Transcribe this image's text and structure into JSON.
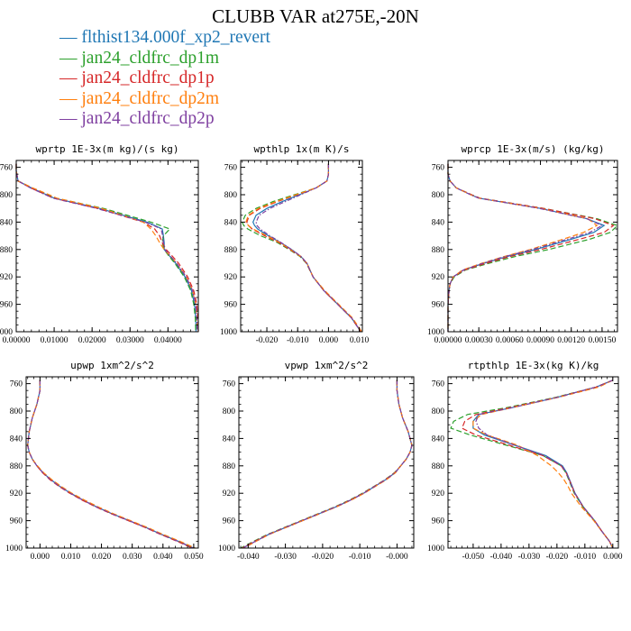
{
  "title": "CLUBB VAR at275E,-20N",
  "legend": [
    {
      "label": "flthist134.000f_xp2_revert",
      "color": "#1f77b4"
    },
    {
      "label": "jan24_cldfrc_dp1m",
      "color": "#2ca02c"
    },
    {
      "label": "jan24_cldfrc_dp1p",
      "color": "#d62728"
    },
    {
      "label": "jan24_cldfrc_dp2m",
      "color": "#ff7f0e"
    },
    {
      "label": "jan24_cldfrc_dp2p",
      "color": "#7f3fa0"
    }
  ],
  "chart_data": [
    {
      "type": "line",
      "title": "wprtp  1E-3x(m kg)/(s kg)",
      "xlim": [
        0.0,
        0.048
      ],
      "xticks": [
        0,
        0.01,
        0.02,
        0.03,
        0.04
      ],
      "xtick_labels": [
        "0.00000",
        "0.01000",
        "0.02000",
        "0.03000",
        "0.04000"
      ],
      "ylim": [
        1000,
        750
      ],
      "yticks": [
        760,
        800,
        840,
        880,
        920,
        960,
        1000
      ],
      "y": [
        755,
        765,
        780,
        790,
        800,
        805,
        820,
        840,
        845,
        850,
        860,
        870,
        880,
        890,
        900,
        920,
        940,
        960,
        980,
        995,
        1000
      ],
      "series": [
        {
          "values": [
            0.0,
            0.0,
            0.0005,
            0.004,
            0.008,
            0.01,
            0.022,
            0.0345,
            0.0365,
            0.0385,
            0.0388,
            0.039,
            0.039,
            0.0405,
            0.042,
            0.0445,
            0.0462,
            0.047,
            0.0473,
            0.0474,
            0.0474
          ]
        },
        {
          "values": [
            0.0,
            0.0,
            0.0005,
            0.0042,
            0.0085,
            0.0105,
            0.023,
            0.0355,
            0.038,
            0.0405,
            0.0388,
            0.0385,
            0.039,
            0.0403,
            0.0418,
            0.0443,
            0.046,
            0.0468,
            0.0472,
            0.0473,
            0.0473
          ]
        },
        {
          "values": [
            0.0,
            0.0,
            0.0005,
            0.0038,
            0.0078,
            0.0098,
            0.0215,
            0.0335,
            0.035,
            0.0365,
            0.0378,
            0.0385,
            0.0395,
            0.0412,
            0.0428,
            0.0452,
            0.0468,
            0.0476,
            0.0479,
            0.048,
            0.048
          ]
        },
        {
          "values": [
            0.0,
            0.0,
            0.0005,
            0.0043,
            0.0087,
            0.0107,
            0.0225,
            0.0335,
            0.0345,
            0.0355,
            0.0368,
            0.0378,
            0.039,
            0.0407,
            0.0423,
            0.0448,
            0.0465,
            0.0473,
            0.0476,
            0.0477,
            0.0477
          ]
        },
        {
          "values": [
            0.0,
            0.0,
            0.0005,
            0.0037,
            0.0077,
            0.0097,
            0.0212,
            0.034,
            0.0362,
            0.0382,
            0.0386,
            0.0388,
            0.0392,
            0.0407,
            0.0423,
            0.0448,
            0.0465,
            0.0473,
            0.0476,
            0.0477,
            0.0477
          ]
        }
      ]
    },
    {
      "type": "line",
      "title": "wpthlp  1x(m K)/s",
      "xlim": [
        -0.0285,
        0.011
      ],
      "xticks": [
        -0.02,
        -0.01,
        0.0,
        0.01
      ],
      "xtick_labels": [
        "-0.020",
        "-0.010",
        "0.000",
        "0.010"
      ],
      "ylim": [
        1000,
        750
      ],
      "yticks": [
        760,
        800,
        840,
        880,
        920,
        960,
        1000
      ],
      "y": [
        755,
        770,
        780,
        790,
        800,
        810,
        820,
        830,
        840,
        845,
        850,
        860,
        870,
        880,
        890,
        900,
        920,
        940,
        960,
        980,
        1000
      ],
      "series": [
        {
          "values": [
            0.0,
            0.0,
            -0.0005,
            -0.004,
            -0.0095,
            -0.015,
            -0.02,
            -0.0235,
            -0.0245,
            -0.024,
            -0.023,
            -0.0195,
            -0.0155,
            -0.012,
            -0.009,
            -0.007,
            -0.005,
            -0.0015,
            0.003,
            0.0075,
            0.0105
          ]
        },
        {
          "values": [
            0.0,
            0.0,
            -0.0005,
            -0.004,
            -0.011,
            -0.018,
            -0.0235,
            -0.027,
            -0.028,
            -0.0275,
            -0.0262,
            -0.022,
            -0.0165,
            -0.0128,
            -0.0093,
            -0.0072,
            -0.005,
            -0.0015,
            0.003,
            0.0075,
            0.0105
          ]
        },
        {
          "values": [
            0.0,
            0.0,
            -0.0005,
            -0.004,
            -0.0103,
            -0.0165,
            -0.0222,
            -0.0257,
            -0.0265,
            -0.026,
            -0.0248,
            -0.0207,
            -0.016,
            -0.0125,
            -0.0091,
            -0.0071,
            -0.005,
            -0.0015,
            0.003,
            0.0075,
            0.0105
          ]
        },
        {
          "values": [
            0.0,
            0.0,
            -0.0005,
            -0.004,
            -0.0105,
            -0.017,
            -0.0227,
            -0.026,
            -0.0268,
            -0.026,
            -0.0245,
            -0.02,
            -0.0157,
            -0.0123,
            -0.009,
            -0.007,
            -0.005,
            -0.0012,
            0.0033,
            0.0078,
            0.0108
          ]
        },
        {
          "values": [
            0.0,
            0.0,
            -0.0005,
            -0.004,
            -0.009,
            -0.014,
            -0.019,
            -0.0225,
            -0.0235,
            -0.0232,
            -0.0222,
            -0.019,
            -0.0153,
            -0.012,
            -0.0089,
            -0.007,
            -0.005,
            -0.0015,
            0.003,
            0.0075,
            0.0105
          ]
        }
      ]
    },
    {
      "type": "line",
      "title": "wprcp  1E-3x(m/s) (kg/kg)",
      "xlim": [
        0.0,
        0.00165
      ],
      "xticks": [
        0,
        0.0003,
        0.0006,
        0.0009,
        0.0012,
        0.0015
      ],
      "xtick_labels": [
        "0.00000",
        "0.00030",
        "0.00060",
        "0.00090",
        "0.00120",
        "0.00150"
      ],
      "ylim": [
        1000,
        750
      ],
      "yticks": [
        760,
        800,
        840,
        880,
        920,
        960,
        1000
      ],
      "y": [
        755,
        770,
        780,
        790,
        800,
        805,
        820,
        835,
        845,
        855,
        865,
        880,
        890,
        900,
        910,
        920,
        930,
        940,
        960,
        980,
        1000
      ],
      "series": [
        {
          "values": [
            0.0,
            0.0,
            2e-05,
            8e-05,
            0.00022,
            0.0003,
            0.0009,
            0.00135,
            0.00152,
            0.00142,
            0.0012,
            0.00085,
            0.00058,
            0.00035,
            0.00015,
            5e-05,
            2e-05,
            1e-05,
            0.0,
            0.0,
            0.0
          ]
        },
        {
          "values": [
            0.0,
            0.0,
            2e-05,
            8e-05,
            0.00023,
            0.00031,
            0.00093,
            0.00145,
            0.00165,
            0.00158,
            0.00138,
            0.00098,
            0.00066,
            0.0004,
            0.00017,
            6e-05,
            2e-05,
            1e-05,
            0.0,
            0.0,
            0.0
          ]
        },
        {
          "values": [
            0.0,
            0.0,
            2e-05,
            8e-05,
            0.00023,
            0.00031,
            0.00093,
            0.00143,
            0.00161,
            0.00152,
            0.00128,
            0.0009,
            0.00061,
            0.00037,
            0.00016,
            5e-05,
            2e-05,
            1e-05,
            0.0,
            0.0,
            0.0
          ]
        },
        {
          "values": [
            0.0,
            0.0,
            2e-05,
            8e-05,
            0.00022,
            0.0003,
            0.0009,
            0.00136,
            0.00145,
            0.00132,
            0.00112,
            0.0008,
            0.00055,
            0.00033,
            0.00014,
            5e-05,
            2e-05,
            1e-05,
            0.0,
            0.0,
            0.0
          ]
        },
        {
          "values": [
            0.0,
            0.0,
            2e-05,
            8e-05,
            0.00022,
            0.0003,
            0.00089,
            0.00135,
            0.0015,
            0.00138,
            0.00116,
            0.00082,
            0.00056,
            0.00034,
            0.00015,
            5e-05,
            2e-05,
            1e-05,
            0.0,
            0.0,
            0.0
          ]
        }
      ]
    },
    {
      "type": "line",
      "title": "upwp  1xm^2/s^2",
      "xlim": [
        -0.0045,
        0.0515
      ],
      "xticks": [
        0.0,
        0.01,
        0.02,
        0.03,
        0.04,
        0.05
      ],
      "xtick_labels": [
        "0.000",
        "0.010",
        "0.020",
        "0.030",
        "0.040",
        "0.050"
      ],
      "ylim": [
        1000,
        750
      ],
      "yticks": [
        760,
        800,
        840,
        880,
        920,
        960,
        1000
      ],
      "y": [
        755,
        770,
        790,
        810,
        830,
        850,
        860,
        870,
        880,
        890,
        900,
        910,
        920,
        930,
        940,
        950,
        960,
        970,
        980,
        990,
        1000
      ],
      "series": [
        {
          "values": [
            0.0,
            0.0,
            -0.001,
            -0.0025,
            -0.0035,
            -0.004,
            -0.0035,
            -0.0025,
            -0.001,
            0.001,
            0.0035,
            0.0065,
            0.01,
            0.014,
            0.0185,
            0.0235,
            0.029,
            0.0345,
            0.0395,
            0.045,
            0.05
          ]
        },
        {
          "values": [
            0.0,
            0.0,
            -0.001,
            -0.0025,
            -0.0035,
            -0.004,
            -0.0035,
            -0.0025,
            -0.001,
            0.001,
            0.0035,
            0.0065,
            0.01,
            0.014,
            0.0185,
            0.0235,
            0.029,
            0.0345,
            0.0395,
            0.0448,
            0.0498
          ]
        },
        {
          "values": [
            0.0,
            0.0,
            -0.001,
            -0.0025,
            -0.0035,
            -0.004,
            -0.0035,
            -0.0025,
            -0.001,
            0.0008,
            0.0032,
            0.0062,
            0.0097,
            0.0137,
            0.0182,
            0.0232,
            0.0287,
            0.0342,
            0.0392,
            0.0445,
            0.0495
          ]
        },
        {
          "values": [
            0.0,
            0.0,
            -0.001,
            -0.0025,
            -0.0035,
            -0.004,
            -0.0035,
            -0.0025,
            -0.0008,
            0.0012,
            0.0038,
            0.0069,
            0.0104,
            0.0145,
            0.019,
            0.024,
            0.0295,
            0.035,
            0.04,
            0.0455,
            0.0505
          ]
        },
        {
          "values": [
            0.0,
            0.0,
            -0.001,
            -0.0025,
            -0.0035,
            -0.004,
            -0.0035,
            -0.0025,
            -0.001,
            0.0009,
            0.0034,
            0.0064,
            0.0099,
            0.0139,
            0.0184,
            0.0234,
            0.0289,
            0.0344,
            0.0394,
            0.0448,
            0.0498
          ]
        }
      ]
    },
    {
      "type": "line",
      "title": "vpwp  1xm^2/s^2",
      "xlim": [
        -0.0425,
        0.0045
      ],
      "xticks": [
        -0.04,
        -0.03,
        -0.02,
        -0.01,
        0.0
      ],
      "xtick_labels": [
        "-0.040",
        "-0.030",
        "-0.020",
        "-0.010",
        "-0.000"
      ],
      "ylim": [
        1000,
        750
      ],
      "yticks": [
        760,
        800,
        840,
        880,
        920,
        960,
        1000
      ],
      "y": [
        755,
        770,
        790,
        810,
        830,
        850,
        860,
        870,
        880,
        890,
        900,
        910,
        920,
        930,
        940,
        950,
        960,
        970,
        980,
        990,
        1000
      ],
      "series": [
        {
          "values": [
            0.0,
            0.0,
            0.0005,
            0.0015,
            0.003,
            0.004,
            0.0035,
            0.0025,
            0.001,
            -0.0005,
            -0.003,
            -0.006,
            -0.009,
            -0.0125,
            -0.0165,
            -0.021,
            -0.0255,
            -0.03,
            -0.0345,
            -0.038,
            -0.0415
          ]
        },
        {
          "values": [
            0.0,
            0.0,
            0.0005,
            0.0015,
            0.003,
            0.004,
            0.0035,
            0.0025,
            0.001,
            -0.0007,
            -0.0032,
            -0.0062,
            -0.0093,
            -0.0128,
            -0.0168,
            -0.0213,
            -0.0258,
            -0.0303,
            -0.0348,
            -0.0385,
            -0.042
          ]
        },
        {
          "values": [
            0.0,
            0.0,
            0.0005,
            0.0015,
            0.003,
            0.004,
            0.0035,
            0.0025,
            0.001,
            -0.0006,
            -0.0031,
            -0.0061,
            -0.0091,
            -0.0126,
            -0.0166,
            -0.0211,
            -0.0256,
            -0.0301,
            -0.0346,
            -0.0382,
            -0.0417
          ]
        },
        {
          "values": [
            0.0,
            0.0,
            0.0005,
            0.0015,
            0.003,
            0.004,
            0.0035,
            0.0025,
            0.001,
            -0.0004,
            -0.0028,
            -0.0058,
            -0.0088,
            -0.0123,
            -0.0163,
            -0.0208,
            -0.0253,
            -0.0298,
            -0.0343,
            -0.0378,
            -0.0412
          ]
        },
        {
          "values": [
            0.0,
            0.0,
            0.0005,
            0.0015,
            0.003,
            0.004,
            0.0035,
            0.0025,
            0.001,
            -0.0005,
            -0.003,
            -0.006,
            -0.009,
            -0.0125,
            -0.0165,
            -0.021,
            -0.0255,
            -0.03,
            -0.0345,
            -0.038,
            -0.0415
          ]
        }
      ]
    },
    {
      "type": "line",
      "title": "rtpthlp  1E-3x(kg K)/kg",
      "xlim": [
        -0.059,
        0.002
      ],
      "xticks": [
        -0.05,
        -0.04,
        -0.03,
        -0.02,
        -0.01,
        0.0
      ],
      "xtick_labels": [
        "-0.050",
        "-0.040",
        "-0.030",
        "-0.020",
        "-0.010",
        "0.000"
      ],
      "ylim": [
        1000,
        750
      ],
      "yticks": [
        760,
        800,
        840,
        880,
        920,
        960,
        1000
      ],
      "y": [
        755,
        765,
        780,
        795,
        805,
        815,
        825,
        835,
        850,
        865,
        880,
        890,
        900,
        910,
        920,
        940,
        960,
        975,
        990,
        1000
      ],
      "series": [
        {
          "values": [
            0.0,
            -0.006,
            -0.02,
            -0.036,
            -0.048,
            -0.05,
            -0.05,
            -0.046,
            -0.035,
            -0.024,
            -0.018,
            -0.0165,
            -0.0155,
            -0.0145,
            -0.0135,
            -0.0105,
            -0.0065,
            -0.004,
            -0.0012,
            0.0
          ]
        },
        {
          "values": [
            0.0,
            -0.006,
            -0.0205,
            -0.038,
            -0.052,
            -0.057,
            -0.058,
            -0.051,
            -0.038,
            -0.025,
            -0.0185,
            -0.0168,
            -0.0158,
            -0.0148,
            -0.0138,
            -0.0107,
            -0.0066,
            -0.004,
            -0.0012,
            0.0
          ]
        },
        {
          "values": [
            0.0,
            -0.006,
            -0.02,
            -0.037,
            -0.049,
            -0.053,
            -0.054,
            -0.049,
            -0.037,
            -0.025,
            -0.0185,
            -0.0167,
            -0.0156,
            -0.0146,
            -0.0136,
            -0.0106,
            -0.0065,
            -0.004,
            -0.0012,
            0.0
          ]
        },
        {
          "values": [
            0.0,
            -0.005,
            -0.0195,
            -0.036,
            -0.047,
            -0.05,
            -0.05,
            -0.045,
            -0.034,
            -0.027,
            -0.022,
            -0.0195,
            -0.0175,
            -0.016,
            -0.0148,
            -0.0112,
            -0.0068,
            -0.004,
            -0.0012,
            0.0
          ]
        },
        {
          "values": [
            0.0,
            -0.006,
            -0.0198,
            -0.036,
            -0.048,
            -0.049,
            -0.048,
            -0.045,
            -0.035,
            -0.0245,
            -0.0183,
            -0.0166,
            -0.0156,
            -0.0146,
            -0.0136,
            -0.0106,
            -0.0065,
            -0.004,
            -0.0012,
            0.0
          ]
        }
      ]
    }
  ]
}
